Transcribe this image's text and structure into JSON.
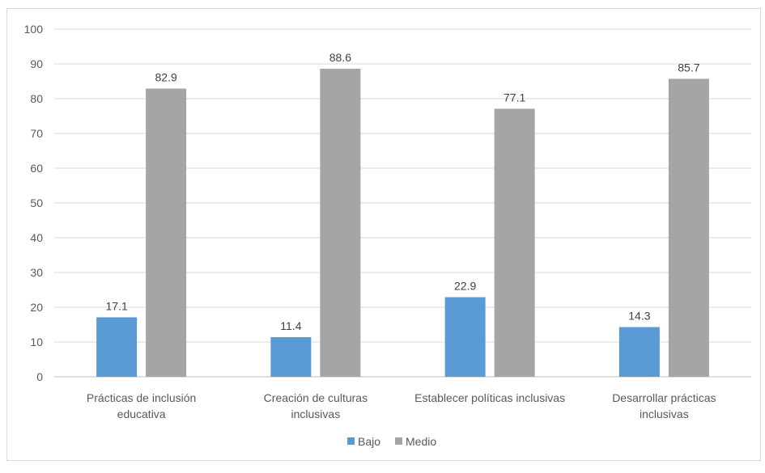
{
  "chart_data": {
    "type": "bar",
    "title": "",
    "xlabel": "",
    "ylabel": "",
    "ylim": [
      0,
      100
    ],
    "yticks": [
      0,
      10,
      20,
      30,
      40,
      50,
      60,
      70,
      80,
      90,
      100
    ],
    "grid": true,
    "legend_position": "bottom",
    "categories": [
      [
        "Prácticas de inclusión",
        "educativa"
      ],
      [
        "Creación de culturas",
        "inclusivas"
      ],
      [
        "Establecer políticas inclusivas"
      ],
      [
        "Desarrollar prácticas",
        "inclusivas"
      ]
    ],
    "series": [
      {
        "name": "Bajo",
        "color": "#5b9bd5",
        "values": [
          17.1,
          11.4,
          22.9,
          14.3
        ]
      },
      {
        "name": "Medio",
        "color": "#a5a5a5",
        "values": [
          82.9,
          88.6,
          77.1,
          85.7
        ]
      }
    ]
  }
}
